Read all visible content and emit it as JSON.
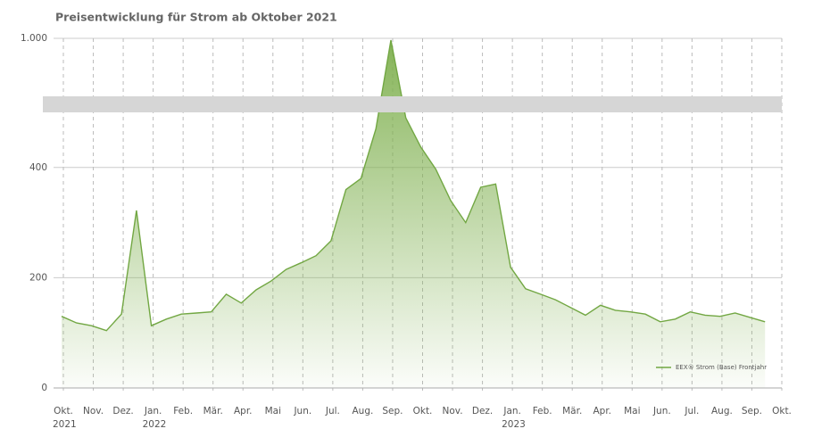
{
  "chart_data": {
    "type": "area",
    "title": "Preisentwicklung für Strom ab Oktober 2021",
    "xticks": [
      {
        "label": "Okt.",
        "year": "2021"
      },
      {
        "label": "Nov."
      },
      {
        "label": "Dez."
      },
      {
        "label": "Jan.",
        "year": "2022"
      },
      {
        "label": "Feb."
      },
      {
        "label": "Mär."
      },
      {
        "label": "Apr."
      },
      {
        "label": "Mai"
      },
      {
        "label": "Jun."
      },
      {
        "label": "Jul."
      },
      {
        "label": "Aug."
      },
      {
        "label": "Sep."
      },
      {
        "label": "Okt."
      },
      {
        "label": "Nov."
      },
      {
        "label": "Dez."
      },
      {
        "label": "Jan.",
        "year": "2023"
      },
      {
        "label": "Feb."
      },
      {
        "label": "Mär."
      },
      {
        "label": "Apr."
      },
      {
        "label": "Mai"
      },
      {
        "label": "Jun."
      },
      {
        "label": "Jul."
      },
      {
        "label": "Aug."
      },
      {
        "label": "Sep."
      },
      {
        "label": "Okt."
      }
    ],
    "ylim": [
      0,
      1000
    ],
    "axis_break": 500,
    "yticks": [
      0,
      200,
      400,
      {
        "value": 1000,
        "label": "1.000"
      }
    ],
    "grid": true,
    "legend": "bottom-right",
    "series": [
      {
        "name": "EEX® Strom (Base) Frontjahr",
        "color": "#72a743",
        "values": [
          130,
          118,
          113,
          104,
          134,
          322,
          113,
          125,
          134,
          136,
          138,
          170,
          154,
          178,
          194,
          215,
          227,
          240,
          267,
          360,
          380,
          470,
          985,
          490,
          437,
          397,
          340,
          300,
          364,
          370,
          219,
          180,
          170,
          160,
          146,
          132,
          150,
          141,
          138,
          134,
          120,
          125,
          138,
          132,
          130,
          136,
          128,
          120
        ]
      }
    ]
  }
}
